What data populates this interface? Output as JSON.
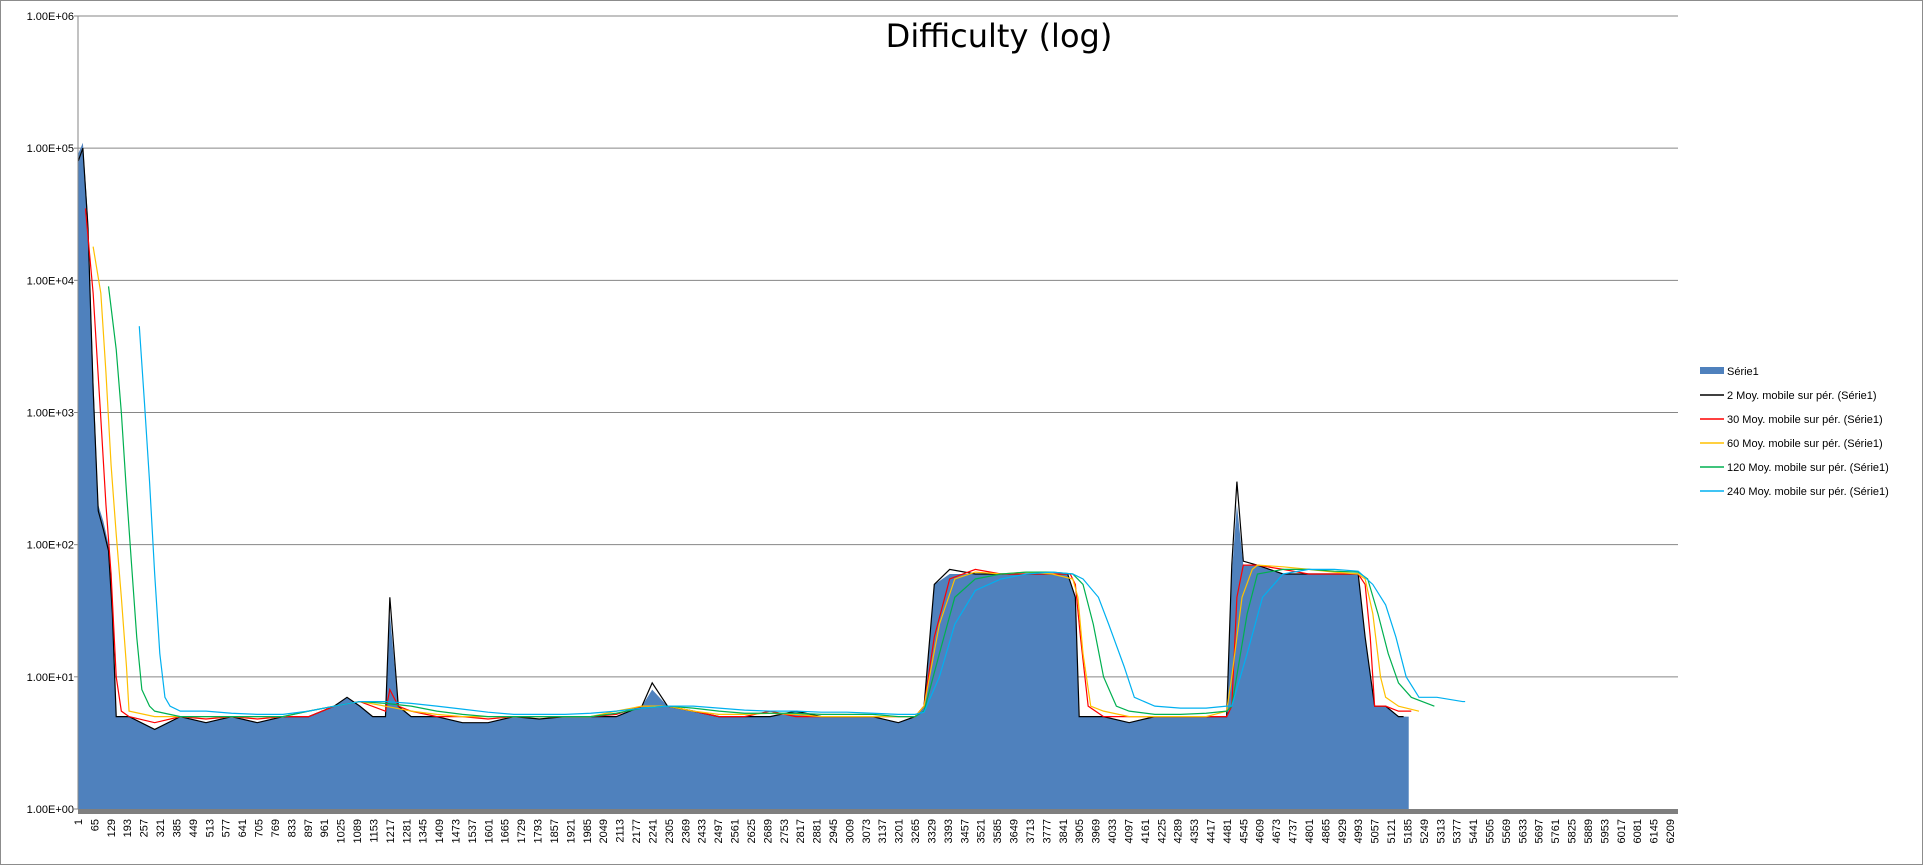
{
  "chart_data": {
    "type": "area",
    "title": "Difficulty (log)",
    "xlabel": "",
    "ylabel": "",
    "yscale": "log",
    "ylim": [
      1,
      1000000
    ],
    "y_tick_labels": [
      "1.00E+00",
      "1.00E+01",
      "1.00E+02",
      "1.00E+03",
      "1.00E+04",
      "1.00E+05",
      "1.00E+06"
    ],
    "x_range": [
      1,
      6240
    ],
    "x_tick_labels": [
      "1",
      "65",
      "129",
      "193",
      "257",
      "321",
      "385",
      "449",
      "513",
      "577",
      "641",
      "705",
      "769",
      "833",
      "897",
      "961",
      "1025",
      "1089",
      "1153",
      "1217",
      "1281",
      "1345",
      "1409",
      "1473",
      "1537",
      "1601",
      "1665",
      "1729",
      "1793",
      "1857",
      "1921",
      "1985",
      "2049",
      "2113",
      "2177",
      "2241",
      "2305",
      "2369",
      "2433",
      "2497",
      "2561",
      "2625",
      "2689",
      "2753",
      "2817",
      "2881",
      "2945",
      "3009",
      "3073",
      "3137",
      "3201",
      "3265",
      "3329",
      "3393",
      "3457",
      "3521",
      "3585",
      "3649",
      "3713",
      "3777",
      "3841",
      "3905",
      "3969",
      "4033",
      "4097",
      "4161",
      "4225",
      "4289",
      "4353",
      "4417",
      "4481",
      "4545",
      "4609",
      "4673",
      "4737",
      "4801",
      "4865",
      "4929",
      "4993",
      "5057",
      "5121",
      "5185",
      "5249",
      "5313",
      "5377",
      "5441",
      "5505",
      "5569",
      "5633",
      "5697",
      "5761",
      "5825",
      "5889",
      "5953",
      "6017",
      "6081",
      "6145",
      "6209"
    ],
    "grid": true,
    "legend_position": "right",
    "series": [
      {
        "name": "Série1",
        "kind": "area",
        "color": "#4F81BD",
        "x": [
          1,
          20,
          40,
          60,
          80,
          100,
          120,
          135,
          150,
          200,
          300,
          400,
          500,
          600,
          700,
          800,
          900,
          1000,
          1050,
          1100,
          1150,
          1200,
          1217,
          1250,
          1300,
          1400,
          1500,
          1600,
          1700,
          1800,
          1900,
          2000,
          2100,
          2200,
          2240,
          2300,
          2400,
          2500,
          2600,
          2700,
          2800,
          2900,
          3000,
          3100,
          3200,
          3265,
          3300,
          3340,
          3400,
          3500,
          3600,
          3700,
          3800,
          3860,
          3890,
          3905,
          3950,
          4000,
          4100,
          4200,
          4300,
          4400,
          4480,
          4500,
          4520,
          4545,
          4600,
          4700,
          4800,
          4900,
          4950,
          4993,
          5020,
          5057,
          5100,
          5150,
          5190
        ],
        "y": [
          90000,
          110000,
          30000,
          2000,
          200,
          150,
          100,
          40,
          5,
          5,
          4,
          5,
          4.5,
          5,
          4.5,
          5,
          5,
          6,
          7,
          6,
          5,
          5,
          30,
          6,
          5,
          5,
          4.5,
          4.5,
          5,
          4.8,
          5,
          5,
          5,
          6,
          8,
          6,
          5.5,
          5,
          5,
          5,
          5.5,
          5,
          5,
          5,
          4.5,
          5,
          6,
          50,
          60,
          60,
          60,
          60,
          60,
          60,
          40,
          5,
          5,
          5,
          4.5,
          5,
          5,
          5,
          5,
          60,
          200,
          70,
          70,
          60,
          60,
          60,
          60,
          60,
          20,
          6,
          6,
          5,
          5
        ]
      },
      {
        "name": "2 Moy. mobile sur pér. (Série1)",
        "kind": "line",
        "color": "#000000",
        "x": [
          2,
          20,
          40,
          60,
          80,
          100,
          120,
          135,
          150,
          200,
          300,
          400,
          500,
          600,
          700,
          800,
          900,
          1000,
          1050,
          1100,
          1150,
          1200,
          1217,
          1250,
          1300,
          1400,
          1500,
          1600,
          1700,
          1800,
          1900,
          2000,
          2100,
          2200,
          2240,
          2300,
          2400,
          2500,
          2600,
          2700,
          2800,
          2900,
          3000,
          3100,
          3200,
          3265,
          3300,
          3340,
          3400,
          3500,
          3600,
          3700,
          3800,
          3860,
          3890,
          3905,
          3950,
          4000,
          4100,
          4200,
          4300,
          4400,
          4480,
          4500,
          4520,
          4545,
          4600,
          4700,
          4800,
          4900,
          4950,
          4993,
          5020,
          5057,
          5100,
          5150,
          5170
        ],
        "y": [
          80000,
          100000,
          25000,
          1500,
          180,
          130,
          90,
          30,
          5,
          5,
          4,
          5,
          4.5,
          5,
          4.5,
          5,
          5,
          6,
          7,
          6,
          5,
          5,
          40,
          6,
          5,
          5,
          4.5,
          4.5,
          5,
          4.8,
          5,
          5,
          5,
          6,
          9,
          6,
          5.5,
          5,
          5,
          5,
          5.5,
          5,
          5,
          5,
          4.5,
          5,
          6,
          50,
          65,
          60,
          60,
          60,
          60,
          60,
          40,
          5,
          5,
          5,
          4.5,
          5,
          5,
          5,
          5,
          70,
          300,
          75,
          70,
          60,
          60,
          60,
          60,
          60,
          20,
          6,
          6,
          5,
          5
        ]
      },
      {
        "name": "30 Moy. mobile sur pér. (Série1)",
        "kind": "line",
        "color": "#FF0000",
        "x": [
          30,
          60,
          90,
          110,
          130,
          150,
          170,
          200,
          300,
          400,
          500,
          600,
          700,
          800,
          900,
          1000,
          1100,
          1200,
          1217,
          1250,
          1300,
          1400,
          1500,
          1600,
          1700,
          1800,
          1900,
          2000,
          2100,
          2200,
          2300,
          2400,
          2500,
          2600,
          2700,
          2800,
          2900,
          3000,
          3100,
          3200,
          3265,
          3300,
          3340,
          3400,
          3500,
          3600,
          3700,
          3800,
          3870,
          3890,
          3910,
          3940,
          4000,
          4100,
          4200,
          4300,
          4400,
          4480,
          4500,
          4520,
          4545,
          4600,
          4700,
          4800,
          4900,
          4993,
          5020,
          5040,
          5057,
          5100,
          5150,
          5200
        ],
        "y": [
          35000,
          8000,
          900,
          200,
          60,
          10,
          5.5,
          5,
          4.5,
          5,
          4.8,
          5,
          4.8,
          5,
          5,
          6,
          6.5,
          5.5,
          8,
          6,
          5.5,
          5,
          5,
          4.8,
          5,
          5,
          5,
          5,
          5.2,
          6,
          6,
          5.5,
          5,
          5,
          5.5,
          5,
          5,
          5,
          5,
          5,
          5,
          6,
          20,
          55,
          65,
          60,
          60,
          60,
          60,
          50,
          20,
          6,
          5,
          5,
          5,
          5,
          5,
          5,
          6,
          40,
          70,
          70,
          65,
          60,
          60,
          60,
          50,
          20,
          6,
          6,
          5.5,
          5.5
        ]
      },
      {
        "name": "60 Moy. mobile sur pér. (Série1)",
        "kind": "line",
        "color": "#FFC000",
        "x": [
          60,
          90,
          110,
          130,
          150,
          170,
          190,
          200,
          300,
          400,
          500,
          600,
          700,
          800,
          900,
          1000,
          1100,
          1200,
          1300,
          1400,
          1500,
          1600,
          1700,
          1800,
          1900,
          2000,
          2100,
          2200,
          2300,
          2400,
          2500,
          2600,
          2700,
          2800,
          2900,
          3000,
          3100,
          3200,
          3265,
          3300,
          3360,
          3420,
          3500,
          3600,
          3700,
          3800,
          3880,
          3900,
          3920,
          3950,
          4000,
          4100,
          4200,
          4300,
          4400,
          4480,
          4500,
          4540,
          4580,
          4600,
          4700,
          4800,
          4900,
          4993,
          5020,
          5050,
          5080,
          5100,
          5150,
          5230
        ],
        "y": [
          18000,
          8000,
          2000,
          400,
          120,
          40,
          12,
          5.5,
          5,
          5,
          5,
          5,
          5,
          5,
          5.5,
          6,
          6.5,
          6,
          5.5,
          5.2,
          5,
          5,
          5,
          5,
          5,
          5,
          5.5,
          6,
          6,
          5.5,
          5.2,
          5.2,
          5.3,
          5.2,
          5,
          5,
          5,
          5,
          5,
          6,
          25,
          55,
          62,
          60,
          62,
          60,
          55,
          40,
          15,
          6,
          5.5,
          5,
          5,
          5,
          5,
          5.5,
          10,
          40,
          65,
          70,
          68,
          65,
          62,
          60,
          55,
          30,
          10,
          7,
          6,
          5.5
        ]
      },
      {
        "name": "120 Moy. mobile sur pér. (Série1)",
        "kind": "line",
        "color": "#00B050",
        "x": [
          120,
          150,
          170,
          190,
          210,
          230,
          250,
          280,
          300,
          400,
          500,
          600,
          700,
          800,
          900,
          1000,
          1100,
          1200,
          1300,
          1400,
          1500,
          1600,
          1700,
          1800,
          1900,
          2000,
          2100,
          2200,
          2300,
          2400,
          2500,
          2600,
          2700,
          2800,
          2900,
          3000,
          3100,
          3200,
          3265,
          3300,
          3360,
          3420,
          3500,
          3600,
          3700,
          3800,
          3880,
          3920,
          3960,
          4000,
          4050,
          4100,
          4200,
          4300,
          4400,
          4480,
          4500,
          4560,
          4600,
          4700,
          4800,
          4900,
          4993,
          5030,
          5070,
          5110,
          5150,
          5200,
          5290
        ],
        "y": [
          9000,
          3000,
          1000,
          250,
          70,
          20,
          8,
          6,
          5.5,
          5,
          5,
          5,
          5,
          5,
          5.5,
          6,
          6.5,
          6.3,
          6,
          5.5,
          5.2,
          5,
          5,
          5,
          5,
          5,
          5.3,
          5.8,
          6,
          5.8,
          5.5,
          5.3,
          5.3,
          5.3,
          5.2,
          5.2,
          5.2,
          5,
          5,
          5.5,
          15,
          40,
          55,
          60,
          62,
          62,
          60,
          50,
          25,
          10,
          6,
          5.5,
          5.2,
          5.2,
          5.3,
          5.5,
          6,
          30,
          60,
          65,
          65,
          63,
          62,
          55,
          30,
          15,
          9,
          7,
          6
        ]
      },
      {
        "name": "240 Moy. mobile sur pér. (Série1)",
        "kind": "line",
        "color": "#00B0F0",
        "x": [
          240,
          260,
          280,
          300,
          320,
          340,
          360,
          400,
          500,
          600,
          700,
          800,
          900,
          1000,
          1100,
          1200,
          1300,
          1400,
          1500,
          1600,
          1700,
          1800,
          1900,
          2000,
          2100,
          2200,
          2300,
          2400,
          2500,
          2600,
          2700,
          2800,
          2900,
          3000,
          3100,
          3200,
          3265,
          3300,
          3360,
          3420,
          3500,
          3600,
          3700,
          3800,
          3880,
          3920,
          3980,
          4020,
          4080,
          4120,
          4200,
          4300,
          4400,
          4480,
          4500,
          4560,
          4620,
          4700,
          4800,
          4900,
          4993,
          5050,
          5100,
          5140,
          5180,
          5230,
          5300,
          5400,
          5410
        ],
        "y": [
          4500,
          1200,
          300,
          60,
          15,
          7,
          6,
          5.5,
          5.5,
          5.3,
          5.2,
          5.2,
          5.5,
          6,
          6.5,
          6.5,
          6.3,
          6,
          5.7,
          5.4,
          5.2,
          5.2,
          5.2,
          5.3,
          5.5,
          5.8,
          6,
          6,
          5.8,
          5.6,
          5.5,
          5.5,
          5.4,
          5.4,
          5.3,
          5.2,
          5.2,
          5.4,
          10,
          25,
          45,
          55,
          60,
          62,
          60,
          55,
          40,
          25,
          12,
          7,
          6,
          5.8,
          5.8,
          6,
          6,
          15,
          40,
          60,
          65,
          65,
          63,
          50,
          35,
          20,
          10,
          7,
          7,
          6.5,
          6.5
        ]
      }
    ]
  }
}
